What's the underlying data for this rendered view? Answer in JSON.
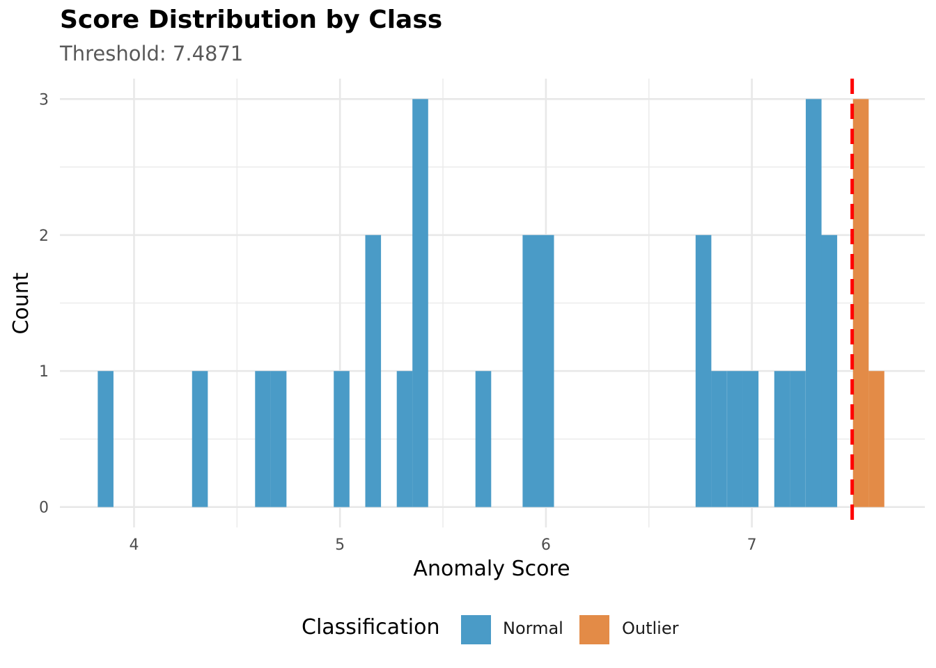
{
  "chart_data": {
    "type": "bar",
    "title": "Score Distribution by Class",
    "subtitle": "Threshold: 7.4871",
    "xlabel": "Anomaly Score",
    "ylabel": "Count",
    "xlim": [
      3.64,
      7.84
    ],
    "ylim": [
      -0.15,
      3.15
    ],
    "x_ticks": [
      4,
      5,
      6,
      7
    ],
    "y_ticks": [
      0,
      1,
      2,
      3
    ],
    "grid": true,
    "legend_position": "bottom",
    "legend_title": "Classification",
    "threshold": 7.4871,
    "threshold_color": "#FF0000",
    "bin_width": 0.0764,
    "series": [
      {
        "name": "Normal",
        "color": "#4A9BC7",
        "bins": [
          {
            "x": 3.862,
            "count": 1
          },
          {
            "x": 4.32,
            "count": 1
          },
          {
            "x": 4.626,
            "count": 1
          },
          {
            "x": 4.702,
            "count": 1
          },
          {
            "x": 5.008,
            "count": 1
          },
          {
            "x": 5.161,
            "count": 2
          },
          {
            "x": 5.314,
            "count": 1
          },
          {
            "x": 5.39,
            "count": 3
          },
          {
            "x": 5.696,
            "count": 1
          },
          {
            "x": 5.925,
            "count": 2
          },
          {
            "x": 6.001,
            "count": 2
          },
          {
            "x": 6.765,
            "count": 2
          },
          {
            "x": 6.841,
            "count": 1
          },
          {
            "x": 6.918,
            "count": 1
          },
          {
            "x": 6.994,
            "count": 1
          },
          {
            "x": 7.147,
            "count": 1
          },
          {
            "x": 7.223,
            "count": 1
          },
          {
            "x": 7.3,
            "count": 3
          },
          {
            "x": 7.376,
            "count": 2
          }
        ]
      },
      {
        "name": "Outlier",
        "color": "#E38B47",
        "bins": [
          {
            "x": 7.529,
            "count": 3
          },
          {
            "x": 7.605,
            "count": 1
          }
        ]
      }
    ]
  }
}
